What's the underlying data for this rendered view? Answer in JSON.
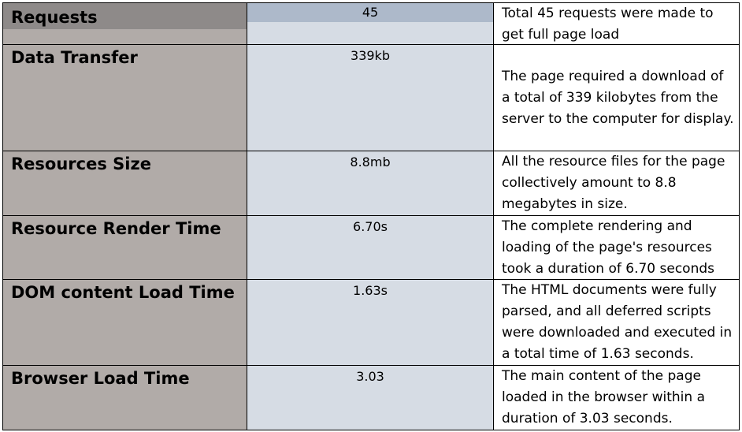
{
  "rows": [
    {
      "metric": "Requests",
      "value": "45",
      "description": "Total 45 requests were made to get full page load"
    },
    {
      "metric": "Data Transfer",
      "value": "339kb",
      "description": "The page required a download of a total of 339 kilobytes from the server to the computer for display."
    },
    {
      "metric": "Resources Size",
      "value": "8.8mb",
      "description": "All the resource files for the page collectively amount to 8.8 megabytes in size."
    },
    {
      "metric": "Resource Render Time",
      "value": "6.70s",
      "description": "The complete rendering and loading of the page's resources took a duration of 6.70 seconds"
    },
    {
      "metric": "DOM content Load Time",
      "value": "1.63s",
      "description": "The HTML documents were fully parsed, and all deferred scripts were downloaded and executed in a total time of 1.63 seconds."
    },
    {
      "metric": "Browser Load Time",
      "value": "3.03",
      "description": "The main content of the page loaded in the browser within a duration of 3.03 seconds."
    }
  ]
}
